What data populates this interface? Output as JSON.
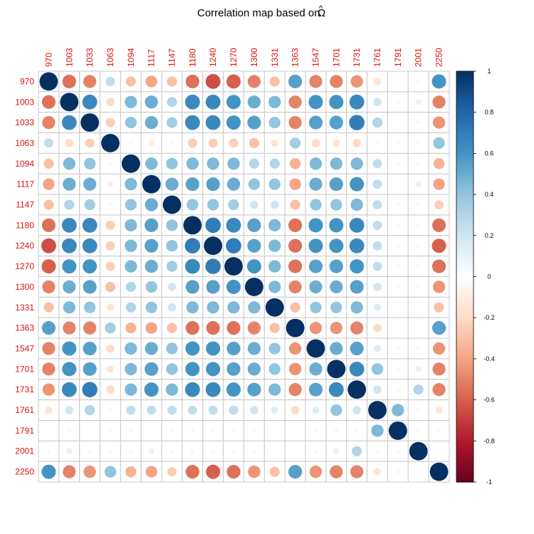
{
  "chart_data": {
    "type": "heatmap",
    "title": "Correlation map based on",
    "title_symbol": "Ω",
    "title_accent": "^",
    "labels": [
      "970",
      "1003",
      "1033",
      "1063",
      "1094",
      "1117",
      "1147",
      "1180",
      "1240",
      "1270",
      "1300",
      "1331",
      "1363",
      "1547",
      "1701",
      "1731",
      "1761",
      "1791",
      "2001",
      "2250"
    ],
    "matrix": [
      [
        1.0,
        -0.55,
        -0.5,
        0.25,
        -0.3,
        -0.4,
        -0.3,
        -0.55,
        -0.65,
        -0.6,
        -0.5,
        -0.3,
        0.55,
        -0.5,
        -0.5,
        -0.45,
        -0.15,
        0.0,
        -0.05,
        0.6
      ],
      [
        -0.55,
        1.0,
        0.65,
        -0.2,
        0.45,
        0.5,
        0.3,
        0.65,
        0.65,
        0.6,
        0.5,
        0.45,
        -0.5,
        0.6,
        0.6,
        0.65,
        0.2,
        0.05,
        0.1,
        -0.5
      ],
      [
        -0.5,
        0.65,
        1.0,
        -0.25,
        0.4,
        0.5,
        0.35,
        0.65,
        0.65,
        0.6,
        0.55,
        0.4,
        -0.5,
        0.55,
        0.55,
        0.7,
        0.3,
        0.0,
        0.05,
        -0.45
      ],
      [
        0.25,
        -0.2,
        -0.25,
        1.0,
        -0.05,
        -0.1,
        0.05,
        -0.25,
        -0.25,
        -0.25,
        -0.3,
        -0.15,
        0.35,
        -0.2,
        -0.15,
        -0.2,
        0.05,
        0.05,
        0.05,
        0.4
      ],
      [
        -0.3,
        0.45,
        0.4,
        -0.05,
        1.0,
        0.45,
        0.4,
        0.45,
        0.45,
        0.45,
        0.3,
        0.3,
        -0.35,
        0.45,
        0.45,
        0.45,
        0.25,
        0.05,
        0.05,
        -0.35
      ],
      [
        -0.4,
        0.5,
        0.5,
        -0.1,
        0.45,
        1.0,
        0.5,
        0.55,
        0.55,
        0.5,
        0.4,
        0.4,
        -0.4,
        0.5,
        0.55,
        0.6,
        0.25,
        0.0,
        0.1,
        -0.4
      ],
      [
        -0.3,
        0.3,
        0.35,
        0.05,
        0.4,
        0.5,
        1.0,
        0.4,
        0.4,
        0.35,
        0.2,
        0.2,
        -0.3,
        0.4,
        0.4,
        0.45,
        0.25,
        0.05,
        0.05,
        -0.25
      ],
      [
        -0.55,
        0.65,
        0.65,
        -0.25,
        0.45,
        0.55,
        0.4,
        1.0,
        0.7,
        0.65,
        0.55,
        0.45,
        -0.55,
        0.6,
        0.6,
        0.65,
        0.25,
        0.05,
        0.05,
        -0.55
      ],
      [
        -0.65,
        0.65,
        0.65,
        -0.25,
        0.45,
        0.55,
        0.4,
        0.7,
        1.0,
        0.7,
        0.55,
        0.45,
        -0.55,
        0.6,
        0.6,
        0.65,
        0.25,
        -0.05,
        0.05,
        -0.6
      ],
      [
        -0.6,
        0.6,
        0.6,
        -0.25,
        0.45,
        0.5,
        0.35,
        0.65,
        0.7,
        1.0,
        0.6,
        0.45,
        -0.55,
        0.55,
        0.55,
        0.6,
        0.25,
        0.05,
        0.05,
        -0.55
      ],
      [
        -0.5,
        0.5,
        0.55,
        -0.3,
        0.3,
        0.4,
        0.2,
        0.55,
        0.55,
        0.6,
        1.0,
        0.45,
        -0.5,
        0.5,
        0.5,
        0.55,
        0.2,
        0.05,
        0.05,
        -0.45
      ],
      [
        -0.3,
        0.45,
        0.4,
        -0.15,
        0.3,
        0.4,
        0.2,
        0.45,
        0.45,
        0.45,
        0.45,
        1.0,
        -0.3,
        0.4,
        0.4,
        0.45,
        0.15,
        0.0,
        0.0,
        -0.3
      ],
      [
        0.55,
        -0.5,
        -0.5,
        0.35,
        -0.35,
        -0.4,
        -0.3,
        -0.55,
        -0.55,
        -0.55,
        -0.5,
        -0.3,
        1.0,
        -0.45,
        -0.45,
        -0.5,
        -0.2,
        0.0,
        0.0,
        0.55
      ],
      [
        -0.5,
        0.6,
        0.55,
        -0.2,
        0.45,
        0.5,
        0.4,
        0.6,
        0.6,
        0.55,
        0.5,
        0.4,
        -0.45,
        1.0,
        0.5,
        0.55,
        0.15,
        -0.05,
        0.05,
        -0.45
      ],
      [
        -0.5,
        0.6,
        0.55,
        -0.15,
        0.45,
        0.55,
        0.4,
        0.6,
        0.6,
        0.55,
        0.5,
        0.4,
        -0.45,
        0.5,
        1.0,
        0.65,
        0.4,
        0.05,
        0.1,
        -0.5
      ],
      [
        -0.45,
        0.65,
        0.7,
        -0.2,
        0.45,
        0.6,
        0.45,
        0.65,
        0.65,
        0.6,
        0.55,
        0.45,
        -0.5,
        0.55,
        0.65,
        1.0,
        0.2,
        0.05,
        0.3,
        -0.5
      ],
      [
        -0.15,
        0.2,
        0.3,
        0.05,
        0.25,
        0.25,
        0.25,
        0.25,
        0.25,
        0.25,
        0.2,
        0.15,
        -0.2,
        0.15,
        0.4,
        0.2,
        1.0,
        0.45,
        0.05,
        -0.15
      ],
      [
        0.0,
        0.05,
        0.0,
        0.05,
        0.05,
        0.0,
        0.05,
        0.05,
        -0.05,
        0.05,
        0.05,
        0.0,
        0.0,
        -0.05,
        0.05,
        0.05,
        0.45,
        1.0,
        0.05,
        0.05
      ],
      [
        -0.05,
        0.1,
        0.05,
        0.05,
        0.05,
        0.1,
        0.05,
        0.05,
        0.05,
        0.05,
        0.05,
        0.0,
        0.0,
        0.05,
        0.1,
        0.3,
        0.05,
        0.05,
        1.0,
        0.0
      ],
      [
        0.6,
        -0.5,
        -0.45,
        0.4,
        -0.35,
        -0.4,
        -0.25,
        -0.55,
        -0.6,
        -0.55,
        -0.45,
        -0.3,
        0.55,
        -0.45,
        -0.5,
        -0.5,
        -0.15,
        0.05,
        0.0,
        1.0
      ]
    ],
    "colorbar": {
      "min": -1,
      "max": 1,
      "ticks": [
        "1",
        "0.8",
        "0.6",
        "0.4",
        "0.2",
        "0",
        "-0.2",
        "-0.4",
        "-0.6",
        "-0.8",
        "-1"
      ]
    },
    "label_color": "#e01010",
    "grid_color": "#c8c8c8",
    "palette": [
      "#67001F",
      "#B2182B",
      "#D6604D",
      "#F4A582",
      "#FDDBC7",
      "#FFFFFF",
      "#D1E5F0",
      "#92C5DE",
      "#4393C3",
      "#2166AC",
      "#053061"
    ]
  }
}
